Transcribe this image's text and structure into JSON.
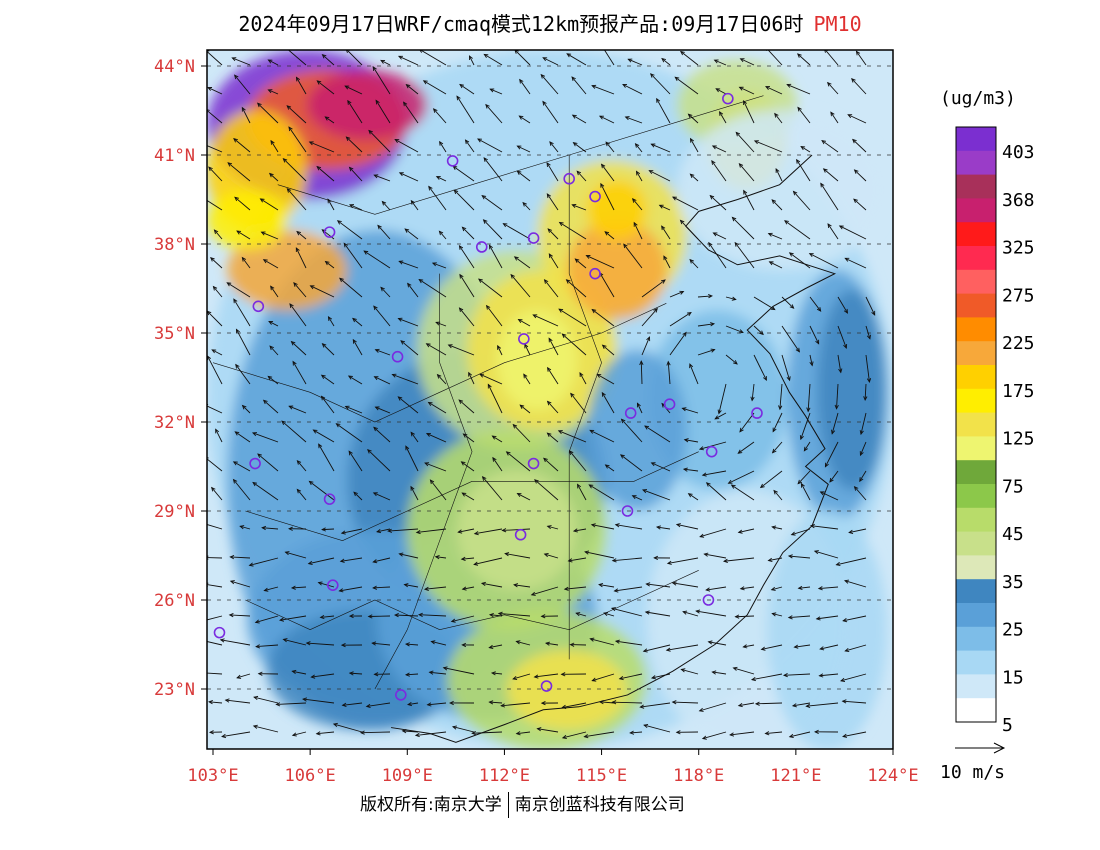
{
  "title": {
    "main": "2024年09月17日WRF/cmaq模式12km预报产品:09月17日06时",
    "pollutant": "PM10"
  },
  "map": {
    "lat_labels": [
      "44°N",
      "41°N",
      "38°N",
      "35°N",
      "32°N",
      "29°N",
      "26°N",
      "23°N"
    ],
    "lat_values": [
      44,
      41,
      38,
      35,
      32,
      29,
      26,
      23
    ],
    "lon_labels": [
      "103°E",
      "106°E",
      "109°E",
      "112°E",
      "115°E",
      "118°E",
      "121°E",
      "124°E"
    ],
    "lon_values": [
      103,
      106,
      109,
      112,
      115,
      118,
      121,
      124
    ],
    "extent": {
      "lon_min": 103,
      "lon_max": 124,
      "lat_min": 21,
      "lat_max": 44.3
    },
    "monitoring_sites": [
      [
        118.9,
        42.9
      ],
      [
        110.4,
        40.8
      ],
      [
        114.0,
        40.2
      ],
      [
        114.8,
        39.6
      ],
      [
        106.6,
        38.4
      ],
      [
        111.3,
        37.9
      ],
      [
        112.9,
        38.2
      ],
      [
        114.8,
        37.0
      ],
      [
        104.4,
        35.9
      ],
      [
        112.6,
        34.8
      ],
      [
        108.7,
        34.2
      ],
      [
        117.1,
        32.6
      ],
      [
        115.9,
        32.3
      ],
      [
        119.8,
        32.3
      ],
      [
        104.3,
        30.6
      ],
      [
        112.9,
        30.6
      ],
      [
        118.4,
        31.0
      ],
      [
        106.6,
        29.4
      ],
      [
        115.8,
        29.0
      ],
      [
        112.5,
        28.2
      ],
      [
        106.7,
        26.5
      ],
      [
        118.3,
        26.0
      ],
      [
        103.2,
        24.9
      ],
      [
        108.8,
        22.8
      ],
      [
        113.3,
        23.1
      ]
    ]
  },
  "colorbar": {
    "unit": "(ug/m3)",
    "labels": [
      "403",
      "368",
      "325",
      "275",
      "225",
      "175",
      "125",
      "75",
      "45",
      "35",
      "25",
      "15",
      "5"
    ],
    "colors": [
      "#7b2fd0",
      "#9a3cc8",
      "#a8305a",
      "#c8206e",
      "#ff1a1a",
      "#ff2a50",
      "#ff6060",
      "#f05a28",
      "#ff8c00",
      "#f7a83a",
      "#ffd000",
      "#ffee00",
      "#f2e24a",
      "#eef570",
      "#6fa83a",
      "#8cc84a",
      "#b8dc6a",
      "#c8e08a",
      "#dde8b8",
      "#3f86c0",
      "#5aa0d8",
      "#7dbde8",
      "#a8d8f4",
      "#cfe8f8",
      "#ffffff"
    ]
  },
  "wind_reference": {
    "label": "10 m/s"
  },
  "footer": {
    "copyright": "版权所有:南京大学",
    "company": "南京创蓝科技有限公司"
  }
}
